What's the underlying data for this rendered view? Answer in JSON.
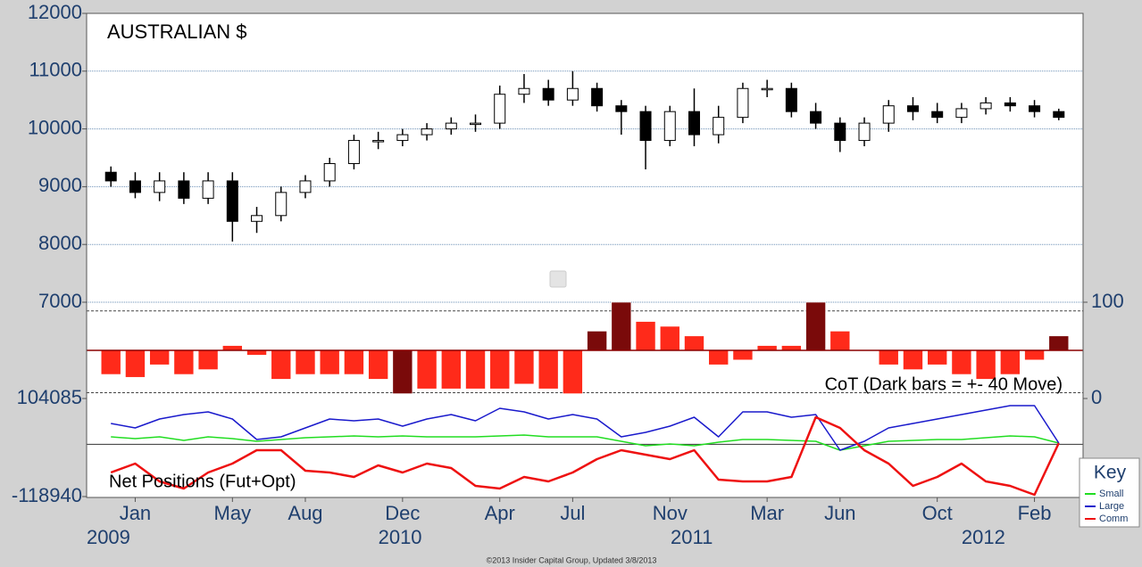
{
  "footer": "©2013 Insider Capital Group, Updated 3/8/2013",
  "chart_data": [
    {
      "type": "candlestick",
      "title": "AUSTRALIAN $",
      "x": [
        "2008-12",
        "2009-01",
        "2009-02",
        "2009-03",
        "2009-04",
        "2009-05",
        "2009-06",
        "2009-07",
        "2009-08",
        "2009-09",
        "2009-10",
        "2009-11",
        "2009-12",
        "2010-01",
        "2010-02",
        "2010-03",
        "2010-04",
        "2010-05",
        "2010-06",
        "2010-07",
        "2010-08",
        "2010-09",
        "2010-10",
        "2010-11",
        "2010-12",
        "2011-01",
        "2011-02",
        "2011-03",
        "2011-04",
        "2011-05",
        "2011-06",
        "2011-07",
        "2011-08",
        "2011-09",
        "2011-10",
        "2011-11",
        "2011-12",
        "2012-01",
        "2012-02",
        "2012-03"
      ],
      "open": [
        9250,
        9100,
        8900,
        9100,
        8800,
        9100,
        8400,
        8500,
        8900,
        9100,
        9400,
        9800,
        9800,
        9900,
        10000,
        10100,
        10100,
        10600,
        10700,
        10500,
        10700,
        10400,
        10300,
        9800,
        10300,
        9900,
        10200,
        10700,
        10700,
        10300,
        10100,
        9800,
        10100,
        10400,
        10300,
        10200,
        10350,
        10450,
        10400,
        10300
      ],
      "high": [
        9350,
        9250,
        9250,
        9250,
        9250,
        9250,
        8650,
        9000,
        9200,
        9500,
        9900,
        9950,
        10000,
        10100,
        10200,
        10250,
        10750,
        10950,
        10850,
        11000,
        10800,
        10500,
        10400,
        10400,
        10700,
        10400,
        10800,
        10850,
        10800,
        10450,
        10200,
        10200,
        10500,
        10550,
        10450,
        10450,
        10550,
        10550,
        10500,
        10350
      ],
      "low": [
        9000,
        8800,
        8750,
        8700,
        8700,
        8050,
        8200,
        8400,
        8800,
        9000,
        9300,
        9650,
        9700,
        9800,
        9900,
        9950,
        10000,
        10450,
        10400,
        10400,
        10300,
        9900,
        9300,
        9700,
        9700,
        9750,
        10100,
        10550,
        10200,
        10000,
        9600,
        9700,
        9950,
        10150,
        10100,
        10100,
        10250,
        10300,
        10200,
        10150
      ],
      "close": [
        9100,
        8900,
        9100,
        8800,
        9100,
        8400,
        8500,
        8900,
        9100,
        9400,
        9800,
        9800,
        9900,
        10000,
        10100,
        10100,
        10600,
        10700,
        10500,
        10700,
        10400,
        10300,
        9800,
        10300,
        9900,
        10200,
        10700,
        10700,
        10300,
        10100,
        9800,
        10100,
        10400,
        10300,
        10200,
        10350,
        10450,
        10400,
        10300,
        10200
      ],
      "xlim": [
        "2008-11",
        "2012-04"
      ],
      "ylim": [
        7000,
        12000
      ],
      "yticks": [
        7000,
        8000,
        9000,
        10000,
        11000,
        12000
      ],
      "grid": true
    },
    {
      "type": "bar",
      "title": "CoT (Dark bars = +- 40 Move)",
      "x": [
        "2008-12",
        "2009-01",
        "2009-02",
        "2009-03",
        "2009-04",
        "2009-05",
        "2009-06",
        "2009-07",
        "2009-08",
        "2009-09",
        "2009-10",
        "2009-11",
        "2009-12",
        "2010-01",
        "2010-02",
        "2010-03",
        "2010-04",
        "2010-05",
        "2010-06",
        "2010-07",
        "2010-08",
        "2010-09",
        "2010-10",
        "2010-11",
        "2010-12",
        "2011-01",
        "2011-02",
        "2011-03",
        "2011-04",
        "2011-05",
        "2011-06",
        "2011-07",
        "2011-08",
        "2011-09",
        "2011-10",
        "2011-11",
        "2011-12",
        "2012-01",
        "2012-02",
        "2012-03"
      ],
      "values": [
        25,
        22,
        35,
        25,
        30,
        55,
        45,
        20,
        25,
        25,
        25,
        20,
        5,
        10,
        10,
        10,
        10,
        15,
        10,
        5,
        70,
        100,
        80,
        75,
        65,
        35,
        40,
        55,
        55,
        100,
        70,
        50,
        35,
        30,
        35,
        25,
        20,
        25,
        40,
        65
      ],
      "colors": [
        "#ff2a1a",
        "#ff2a1a",
        "#ff2a1a",
        "#ff2a1a",
        "#ff2a1a",
        "#ff2a1a",
        "#ff2a1a",
        "#ff2a1a",
        "#ff2a1a",
        "#ff2a1a",
        "#ff2a1a",
        "#ff2a1a",
        "#7a0a0a",
        "#ff2a1a",
        "#ff2a1a",
        "#ff2a1a",
        "#ff2a1a",
        "#ff2a1a",
        "#ff2a1a",
        "#ff2a1a",
        "#7a0a0a",
        "#7a0a0a",
        "#ff2a1a",
        "#ff2a1a",
        "#ff2a1a",
        "#ff2a1a",
        "#ff2a1a",
        "#ff2a1a",
        "#ff2a1a",
        "#7a0a0a",
        "#ff2a1a",
        "#ff2a1a",
        "#ff2a1a",
        "#ff2a1a",
        "#ff2a1a",
        "#ff2a1a",
        "#ff2a1a",
        "#ff2a1a",
        "#ff2a1a",
        "#7a0a0a"
      ],
      "baseline": 50,
      "levels": [
        91,
        6
      ],
      "xlim": [
        "2008-11",
        "2012-04"
      ],
      "ylim": [
        0,
        100
      ],
      "yticks": [
        0,
        100
      ]
    },
    {
      "type": "line",
      "title": "Net Positions (Fut+Opt)",
      "legend_title": "Key",
      "x": [
        "2008-12",
        "2009-01",
        "2009-02",
        "2009-03",
        "2009-04",
        "2009-05",
        "2009-06",
        "2009-07",
        "2009-08",
        "2009-09",
        "2009-10",
        "2009-11",
        "2009-12",
        "2010-01",
        "2010-02",
        "2010-03",
        "2010-04",
        "2010-05",
        "2010-06",
        "2010-07",
        "2010-08",
        "2010-09",
        "2010-10",
        "2010-11",
        "2010-12",
        "2011-01",
        "2011-02",
        "2011-03",
        "2011-04",
        "2011-05",
        "2011-06",
        "2011-07",
        "2011-08",
        "2011-09",
        "2011-10",
        "2011-11",
        "2011-12",
        "2012-01",
        "2012-02",
        "2012-03"
      ],
      "series": [
        {
          "name": "Small",
          "color": "#22dd22",
          "values": [
            16900,
            12850,
            16900,
            8790,
            16900,
            12850,
            6760,
            10820,
            14880,
            16900,
            18930,
            16900,
            18930,
            16900,
            16900,
            16900,
            18930,
            20960,
            16900,
            16900,
            16900,
            6760,
            -3370,
            680,
            -3370,
            4740,
            10820,
            10820,
            8790,
            6760,
            -13510,
            -3370,
            6760,
            8790,
            10820,
            10820,
            14880,
            18930,
            16900,
            2710
          ]
        },
        {
          "name": "Large",
          "color": "#1a1acc",
          "values": [
            47320,
            37180,
            57450,
            67590,
            73670,
            57450,
            10820,
            16900,
            37180,
            57450,
            53400,
            57450,
            41230,
            57450,
            67590,
            53400,
            81780,
            73670,
            57450,
            67590,
            57450,
            16900,
            27040,
            41230,
            61510,
            16900,
            73670,
            73670,
            61510,
            67590,
            -13510,
            6760,
            37180,
            47320,
            57450,
            67590,
            77700,
            87870,
            87870,
            2710
          ]
        },
        {
          "name": "Comm",
          "color": "#ee1111",
          "values": [
            -64200,
            -43930,
            -84480,
            -100700,
            -64200,
            -43930,
            -13510,
            -13510,
            -60150,
            -64200,
            -74340,
            -47980,
            -64200,
            -43930,
            -54060,
            -94620,
            -100700,
            -74340,
            -84480,
            -64200,
            -33790,
            -13510,
            -23650,
            -33790,
            -13510,
            -80420,
            -84480,
            -84480,
            -74340,
            61510,
            37180,
            -13510,
            -43930,
            -94620,
            -74340,
            -43930,
            -84480,
            -94620,
            -114890,
            2710
          ]
        }
      ],
      "xlim": [
        "2008-11",
        "2012-04"
      ],
      "ylim": [
        -118940,
        104085
      ],
      "yticks": [
        -118940,
        104085
      ],
      "xticks": [
        {
          "value": "2009-01",
          "label": "Jan"
        },
        {
          "value": "2009-05",
          "label": "May"
        },
        {
          "value": "2009-08",
          "label": "Aug"
        },
        {
          "value": "2009-12",
          "label": "Dec"
        },
        {
          "value": "2010-04",
          "label": "Apr"
        },
        {
          "value": "2010-07",
          "label": "Jul"
        },
        {
          "value": "2010-11",
          "label": "Nov"
        },
        {
          "value": "2011-03",
          "label": "Mar"
        },
        {
          "value": "2011-06",
          "label": "Jun"
        },
        {
          "value": "2011-10",
          "label": "Oct"
        },
        {
          "value": "2012-02",
          "label": "Feb"
        }
      ],
      "year_ticks": [
        {
          "value": "2009-01",
          "label": "2009"
        },
        {
          "value": "2010-01",
          "label": "2010"
        },
        {
          "value": "2011-01",
          "label": "2011"
        },
        {
          "value": "2012-01",
          "label": "2012"
        }
      ]
    }
  ]
}
